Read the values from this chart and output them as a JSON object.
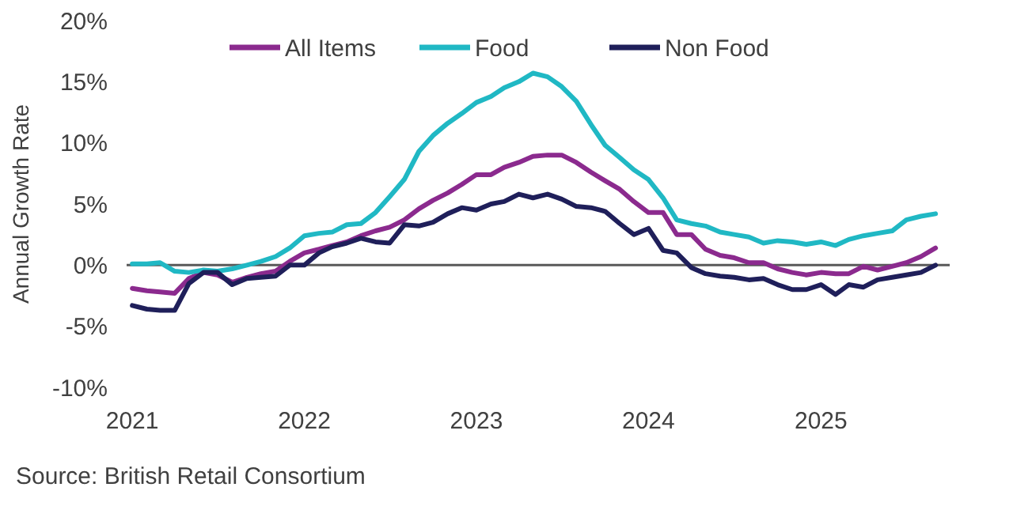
{
  "chart_data": {
    "type": "line",
    "ylabel": "Annual Growth Rate",
    "legend": "top",
    "grid": false,
    "marker": "none",
    "line_style": "solid",
    "annotations": [
      "Source: British Retail Consortium"
    ],
    "x": [
      "2021-01",
      "2021-02",
      "2021-03",
      "2021-04",
      "2021-05",
      "2021-06",
      "2021-07",
      "2021-08",
      "2021-09",
      "2021-10",
      "2021-11",
      "2021-12",
      "2022-01",
      "2022-02",
      "2022-03",
      "2022-04",
      "2022-05",
      "2022-06",
      "2022-07",
      "2022-08",
      "2022-09",
      "2022-10",
      "2022-11",
      "2022-12",
      "2023-01",
      "2023-02",
      "2023-03",
      "2023-04",
      "2023-05",
      "2023-06",
      "2023-07",
      "2023-08",
      "2023-09",
      "2023-10",
      "2023-11",
      "2023-12",
      "2024-01",
      "2024-02",
      "2024-03",
      "2024-04",
      "2024-05",
      "2024-06",
      "2024-07",
      "2024-08",
      "2024-09",
      "2024-10",
      "2024-11",
      "2024-12",
      "2025-01",
      "2025-02",
      "2025-03",
      "2025-04",
      "2025-05",
      "2025-06",
      "2025-07",
      "2025-08",
      "2025-09"
    ],
    "xlim": [
      "2020-12-20",
      "2025-10"
    ],
    "xticks": [
      {
        "value": "2021-01",
        "label": "2021"
      },
      {
        "value": "2022-01",
        "label": "2022"
      },
      {
        "value": "2023-01",
        "label": "2023"
      },
      {
        "value": "2024-01",
        "label": "2024"
      },
      {
        "value": "2025-01",
        "label": "2025"
      }
    ],
    "ylim": [
      -10,
      20
    ],
    "yticks": [
      {
        "value": -10,
        "label": "-10%"
      },
      {
        "value": -5,
        "label": "-5%"
      },
      {
        "value": 0,
        "label": "0%"
      },
      {
        "value": 5,
        "label": "5%"
      },
      {
        "value": 10,
        "label": "10%"
      },
      {
        "value": 15,
        "label": "15%"
      },
      {
        "value": 20,
        "label": "20%"
      }
    ],
    "ref_lines": [
      {
        "axis": "y",
        "value": 0,
        "color": "#595959"
      }
    ],
    "series": [
      {
        "name": "All Items",
        "color": "#8b2a8e",
        "values": [
          -1.9,
          -2.1,
          -2.2,
          -2.3,
          -1.1,
          -0.6,
          -0.8,
          -1.4,
          -1.0,
          -0.7,
          -0.5,
          0.3,
          1.0,
          1.3,
          1.6,
          1.9,
          2.4,
          2.8,
          3.1,
          3.7,
          4.6,
          5.3,
          5.9,
          6.6,
          7.4,
          7.4,
          8.0,
          8.4,
          8.9,
          9.0,
          9.0,
          8.4,
          7.6,
          6.9,
          6.2,
          5.2,
          4.3,
          4.3,
          2.5,
          2.5,
          1.3,
          0.8,
          0.6,
          0.2,
          0.2,
          -0.3,
          -0.6,
          -0.8,
          -0.6,
          -0.7,
          -0.7,
          -0.1,
          -0.4,
          -0.1,
          0.2,
          0.7,
          1.4
        ]
      },
      {
        "name": "Food",
        "color": "#20b8c4",
        "values": [
          0.1,
          0.1,
          0.2,
          -0.5,
          -0.6,
          -0.4,
          -0.5,
          -0.3,
          0.0,
          0.3,
          0.7,
          1.4,
          2.4,
          2.6,
          2.7,
          3.3,
          3.4,
          4.3,
          5.6,
          7.0,
          9.3,
          10.6,
          11.6,
          12.4,
          13.3,
          13.8,
          14.5,
          15.0,
          15.7,
          15.4,
          14.6,
          13.4,
          11.5,
          9.8,
          8.8,
          7.8,
          7.0,
          5.5,
          3.7,
          3.4,
          3.2,
          2.7,
          2.5,
          2.3,
          1.8,
          2.0,
          1.9,
          1.7,
          1.9,
          1.6,
          2.1,
          2.4,
          2.6,
          2.8,
          3.7,
          4.0,
          4.2
        ]
      },
      {
        "name": "Non Food",
        "color": "#1f1f5a",
        "values": [
          -3.3,
          -3.6,
          -3.7,
          -3.7,
          -1.5,
          -0.6,
          -0.6,
          -1.6,
          -1.1,
          -1.0,
          -0.9,
          0.0,
          0.0,
          1.0,
          1.5,
          1.8,
          2.2,
          1.9,
          1.8,
          3.3,
          3.2,
          3.5,
          4.2,
          4.7,
          4.5,
          5.0,
          5.2,
          5.8,
          5.5,
          5.8,
          5.4,
          4.8,
          4.7,
          4.4,
          3.4,
          2.5,
          3.0,
          1.2,
          1.0,
          -0.2,
          -0.7,
          -0.9,
          -1.0,
          -1.2,
          -1.1,
          -1.6,
          -2.0,
          -2.0,
          -1.6,
          -2.4,
          -1.6,
          -1.8,
          -1.2,
          -1.0,
          -0.8,
          -0.6,
          0.0
        ]
      }
    ]
  }
}
